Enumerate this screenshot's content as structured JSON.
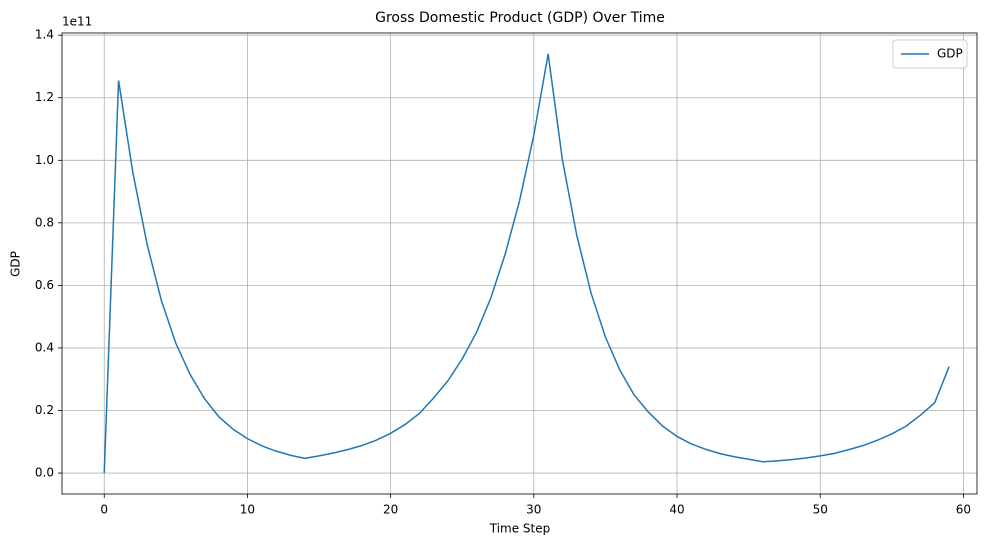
{
  "chart_data": {
    "type": "line",
    "title": "Gross Domestic Product (GDP) Over Time",
    "x_label": "Time Step",
    "y_label": "GDP",
    "y_offset_label": "1e11",
    "x": [
      0,
      1,
      2,
      3,
      4,
      5,
      6,
      7,
      8,
      9,
      10,
      11,
      12,
      13,
      14,
      15,
      16,
      17,
      18,
      19,
      20,
      21,
      22,
      23,
      24,
      25,
      26,
      27,
      28,
      29,
      30,
      31,
      32,
      33,
      34,
      35,
      36,
      37,
      38,
      39,
      40,
      41,
      42,
      43,
      44,
      45,
      46,
      47,
      48,
      49,
      50,
      51,
      52,
      53,
      54,
      55,
      56,
      57,
      58,
      59
    ],
    "series": [
      {
        "name": "GDP",
        "color": "#1f77b4",
        "values": [
          0,
          1.255,
          0.96,
          0.73,
          0.55,
          0.415,
          0.315,
          0.238,
          0.18,
          0.14,
          0.11,
          0.087,
          0.07,
          0.057,
          0.047,
          0.055,
          0.064,
          0.075,
          0.088,
          0.105,
          0.127,
          0.155,
          0.19,
          0.24,
          0.295,
          0.365,
          0.45,
          0.56,
          0.7,
          0.87,
          1.08,
          1.34,
          1.0,
          0.76,
          0.575,
          0.435,
          0.33,
          0.25,
          0.195,
          0.15,
          0.117,
          0.093,
          0.076,
          0.062,
          0.052,
          0.044,
          0.036,
          0.039,
          0.043,
          0.048,
          0.055,
          0.063,
          0.075,
          0.088,
          0.105,
          0.125,
          0.15,
          0.185,
          0.225,
          0.34
        ]
      }
    ],
    "xlim": [
      -2.95,
      60.95
    ],
    "ylim": [
      -0.067,
      1.407
    ],
    "xticks": [
      0,
      10,
      20,
      30,
      40,
      50,
      60
    ],
    "yticks": [
      {
        "value": 0,
        "label": "0.0"
      },
      0.2,
      0.4,
      0.6,
      0.8,
      {
        "value": 1,
        "label": "1.0"
      },
      1.2,
      1.4
    ],
    "grid": true,
    "legend": "upper right"
  }
}
